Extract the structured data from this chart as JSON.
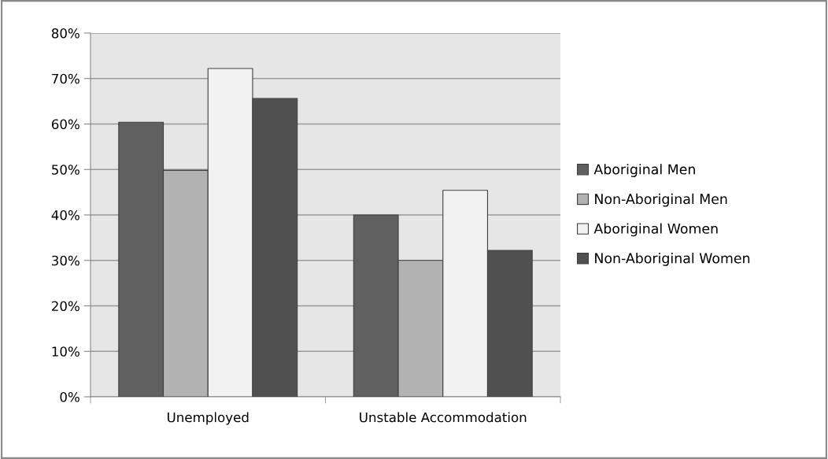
{
  "chart_data": {
    "type": "bar",
    "categories": [
      "Unemployed",
      "Unstable Accommodation"
    ],
    "series": [
      {
        "name": "Aboriginal Men",
        "color": "#606060",
        "values": [
          60.4,
          40
        ]
      },
      {
        "name": "Non-Aboriginal Men",
        "color": "#b2b2b2",
        "values": [
          49.8,
          30
        ]
      },
      {
        "name": "Aboriginal Women",
        "color": "#f2f2f2",
        "values": [
          72.2,
          45.4
        ]
      },
      {
        "name": "Non-Aboriginal Women",
        "color": "#505050",
        "values": [
          65.6,
          32.2
        ]
      }
    ],
    "ylim": [
      0,
      80
    ],
    "yticks": [
      {
        "value": 0,
        "label": "0%"
      },
      {
        "value": 10,
        "label": "10%"
      },
      {
        "value": 20,
        "label": "20%"
      },
      {
        "value": 30,
        "label": "30%"
      },
      {
        "value": 40,
        "label": "40%"
      },
      {
        "value": 50,
        "label": "50%"
      },
      {
        "value": 60,
        "label": "60%"
      },
      {
        "value": 70,
        "label": "70%"
      },
      {
        "value": 80,
        "label": "80%"
      }
    ],
    "grid": "y",
    "legend": "right"
  }
}
